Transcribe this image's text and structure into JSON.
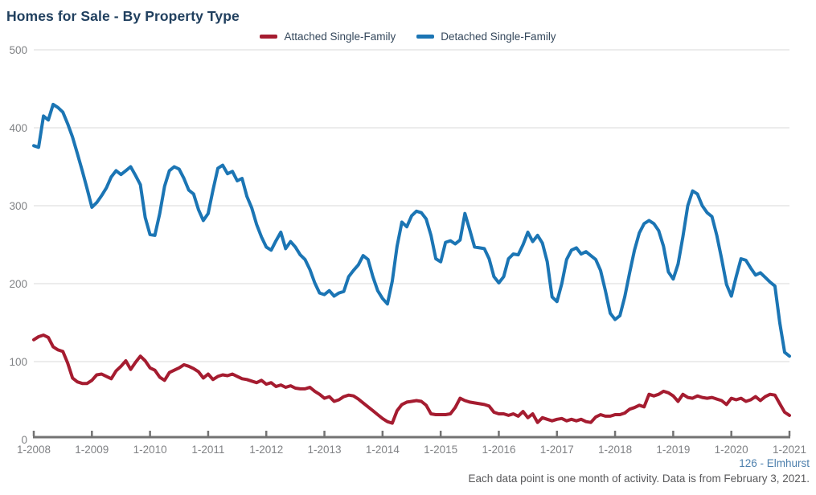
{
  "title": "Homes for Sale - By Property Type",
  "legend": [
    {
      "label": "Attached Single-Family",
      "color": "#a51c30"
    },
    {
      "label": "Detached Single-Family",
      "color": "#1b75b4"
    }
  ],
  "footer": {
    "source": "126 - Elmhurst",
    "note": "Each data point is one month of activity. Data is from February 3, 2021."
  },
  "colors": {
    "title_text": "#21405f",
    "legend_text": "#35485c",
    "axis_labels": "#808285",
    "gridline": "#d9d9d9",
    "axis_line": "#737373",
    "attached_line": "#a51c30",
    "detached_line": "#1b75b4",
    "source_text": "#4e80ad",
    "note_text": "#59595b"
  },
  "chart_data": {
    "type": "line",
    "title": "Homes for Sale - By Property Type",
    "xlabel": "",
    "ylabel": "",
    "ylim": [
      0,
      500
    ],
    "y_ticks": [
      0,
      100,
      200,
      300,
      400,
      500
    ],
    "grid": "horizontal",
    "legend_position": "top",
    "x_unit": "month",
    "x_range": [
      "1-2008",
      "1-2021"
    ],
    "x_tick_labels": [
      "1-2008",
      "1-2009",
      "1-2010",
      "1-2011",
      "1-2012",
      "1-2013",
      "1-2014",
      "1-2015",
      "1-2016",
      "1-2017",
      "1-2018",
      "1-2019",
      "1-2020",
      "1-2021"
    ],
    "tick_every": 12,
    "series": [
      {
        "key": "attached",
        "name": "Attached Single-Family",
        "color": "#a51c30",
        "values": [
          128,
          132,
          134,
          131,
          119,
          115,
          113,
          98,
          79,
          74,
          72,
          72,
          76,
          83,
          84,
          81,
          78,
          88,
          94,
          101,
          90,
          99,
          107,
          101,
          92,
          89,
          80,
          76,
          86,
          89,
          92,
          96,
          94,
          91,
          87,
          79,
          84,
          77,
          81,
          83,
          82,
          84,
          81,
          78,
          77,
          75,
          73,
          76,
          71,
          73,
          68,
          70,
          67,
          69,
          66,
          65,
          65,
          67,
          62,
          58,
          53,
          55,
          49,
          51,
          55,
          57,
          56,
          52,
          47,
          42,
          37,
          32,
          27,
          23,
          21,
          37,
          45,
          48,
          49,
          50,
          49,
          44,
          33,
          32,
          32,
          32,
          33,
          41,
          53,
          50,
          48,
          47,
          46,
          45,
          43,
          35,
          33,
          33,
          31,
          33,
          30,
          36,
          28,
          33,
          22,
          28,
          26,
          24,
          26,
          27,
          24,
          26,
          24,
          26,
          23,
          22,
          29,
          32,
          30,
          30,
          32,
          32,
          34,
          39,
          41,
          44,
          42,
          58,
          56,
          58,
          62,
          60,
          56,
          49,
          58,
          54,
          53,
          56,
          54,
          53,
          54,
          52,
          50,
          45,
          53,
          51,
          53,
          49,
          51,
          55,
          50,
          55,
          58,
          57,
          46,
          35,
          31
        ]
      },
      {
        "key": "detached",
        "name": "Detached Single-Family",
        "color": "#1b75b4",
        "values": [
          377,
          375,
          415,
          410,
          430,
          426,
          420,
          405,
          388,
          367,
          345,
          322,
          298,
          304,
          313,
          323,
          337,
          345,
          340,
          345,
          350,
          339,
          327,
          285,
          263,
          262,
          290,
          325,
          345,
          350,
          347,
          335,
          320,
          315,
          295,
          281,
          290,
          320,
          348,
          352,
          341,
          344,
          332,
          335,
          312,
          297,
          276,
          260,
          247,
          243,
          255,
          266,
          245,
          254,
          247,
          237,
          231,
          218,
          201,
          188,
          186,
          191,
          184,
          188,
          190,
          209,
          217,
          224,
          236,
          231,
          209,
          191,
          181,
          174,
          203,
          248,
          279,
          273,
          287,
          293,
          291,
          283,
          262,
          232,
          228,
          253,
          255,
          251,
          256,
          290,
          269,
          247,
          246,
          245,
          232,
          209,
          201,
          209,
          232,
          238,
          237,
          250,
          266,
          254,
          262,
          252,
          228,
          183,
          177,
          200,
          231,
          243,
          246,
          238,
          241,
          236,
          231,
          217,
          191,
          162,
          154,
          159,
          183,
          214,
          243,
          265,
          277,
          281,
          277,
          268,
          248,
          215,
          206,
          225,
          260,
          300,
          319,
          315,
          300,
          291,
          286,
          262,
          232,
          199,
          184,
          209,
          232,
          230,
          220,
          211,
          214,
          208,
          202,
          197,
          150,
          112,
          107
        ]
      }
    ]
  }
}
